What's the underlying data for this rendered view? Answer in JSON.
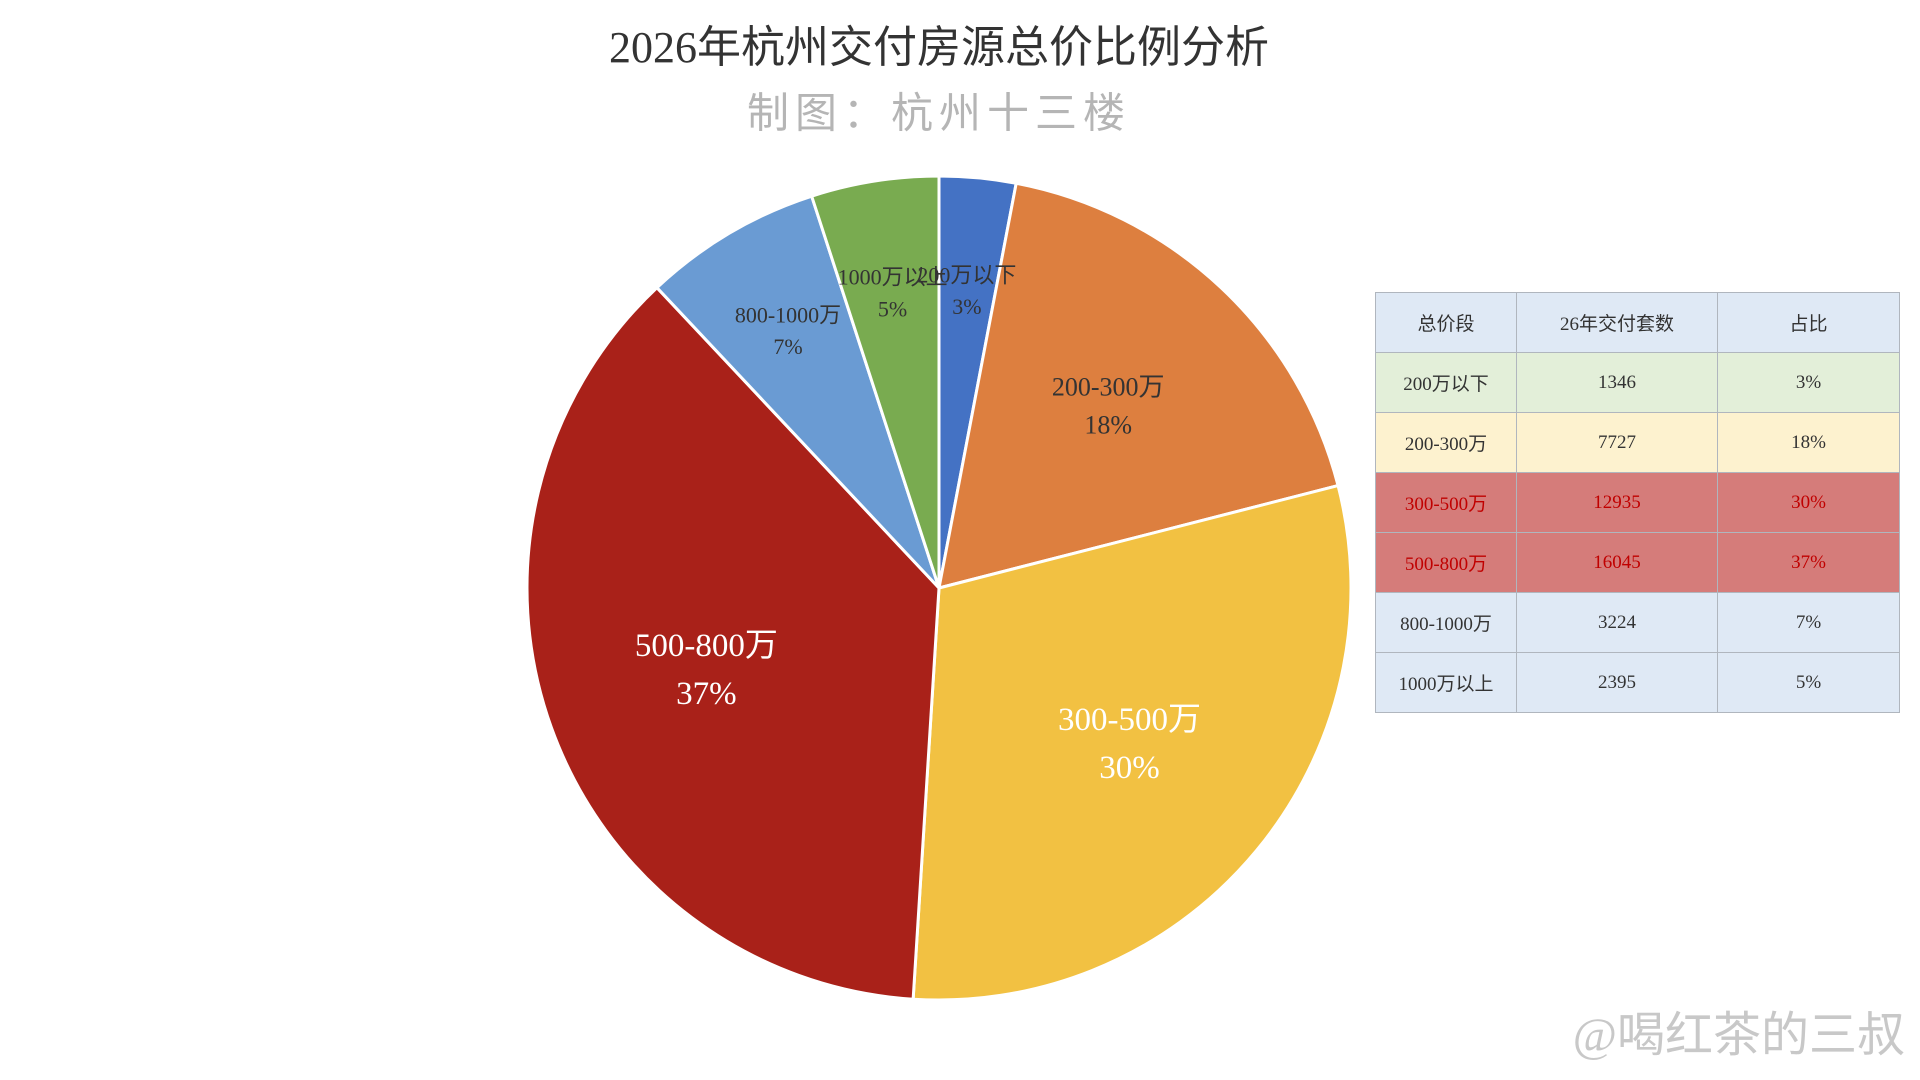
{
  "chart_data": {
    "type": "pie",
    "title": "2026年杭州交付房源总价比例分析",
    "subtitle": "制图：杭州十三楼",
    "categories": [
      "200万以下",
      "200-300万",
      "300-500万",
      "500-800万",
      "800-1000万",
      "1000万以上"
    ],
    "values": [
      3,
      18,
      30,
      37,
      7,
      5
    ],
    "value_labels": [
      "3%",
      "18%",
      "30%",
      "37%",
      "7%",
      "5%"
    ],
    "colors": [
      "#4472c4",
      "#dd7f3f",
      "#f2c142",
      "#a92119",
      "#6a9bd3",
      "#79ab50"
    ],
    "label_colors": [
      "#333333",
      "#333333",
      "#ffffff",
      "#ffffff",
      "#333333",
      "#333333"
    ]
  },
  "table": {
    "header": [
      "总价段",
      "26年交付套数",
      "占比"
    ],
    "rows": [
      [
        "200万以下",
        1346,
        "3%"
      ],
      [
        "200-300万",
        7727,
        "18%"
      ],
      [
        "300-500万",
        12935,
        "30%"
      ],
      [
        "500-800万",
        16045,
        "37%"
      ],
      [
        "800-1000万",
        3224,
        "7%"
      ],
      [
        "1000万以上",
        2395,
        "5%"
      ]
    ],
    "row_colors": [
      "#e3efd9",
      "#fdf2cf",
      "#d57c7a",
      "#d57c7a",
      "#dfe9f5",
      "#dfe9f5"
    ],
    "row_text_colors": [
      "#333333",
      "#333333",
      "#c00000",
      "#c00000",
      "#333333",
      "#333333"
    ],
    "header_color": "#dfe9f5"
  },
  "watermark": "@喝红茶的三叔"
}
